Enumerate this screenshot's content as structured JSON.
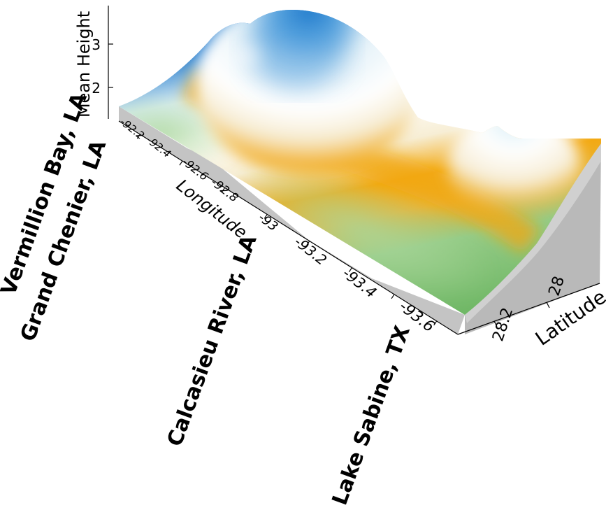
{
  "chart_data": {
    "type": "surface",
    "title": "",
    "xlabel": "Longitude",
    "ylabel": "Latitude",
    "zlabel": "Mean Height",
    "x_ticks": [
      "-92.2",
      "-92.4",
      "-92.6",
      "-92.8",
      "-93",
      "-93.2",
      "-93.4",
      "-93.6"
    ],
    "y_ticks": [
      "28",
      "28.2"
    ],
    "z_ticks": [
      "2",
      "3"
    ],
    "xlim": [
      -92.1,
      -93.7
    ],
    "ylim": [
      27.9,
      28.3
    ],
    "zlim": [
      1.4,
      3.9
    ],
    "grid": false,
    "legend": "none",
    "colormap": [
      "#73b96a",
      "#9ed08f",
      "#f2ac16",
      "#f8f0d8",
      "#e8f4f8",
      "#0f72c9"
    ],
    "site_labels": [
      {
        "name": "Vermillion Bay, LA",
        "longitude": -92.2
      },
      {
        "name": "Grand Chenier, LA",
        "longitude": -92.6
      },
      {
        "name": "Calcasieu River, LA",
        "longitude": -93.2
      },
      {
        "name": "Lake Sabine, TX",
        "longitude": -93.6
      }
    ],
    "peaks": [
      {
        "longitude": -92.7,
        "latitude": 28.05,
        "mean_height": 3.8
      },
      {
        "longitude": -93.4,
        "latitude": 27.95,
        "mean_height": 2.3
      }
    ]
  }
}
